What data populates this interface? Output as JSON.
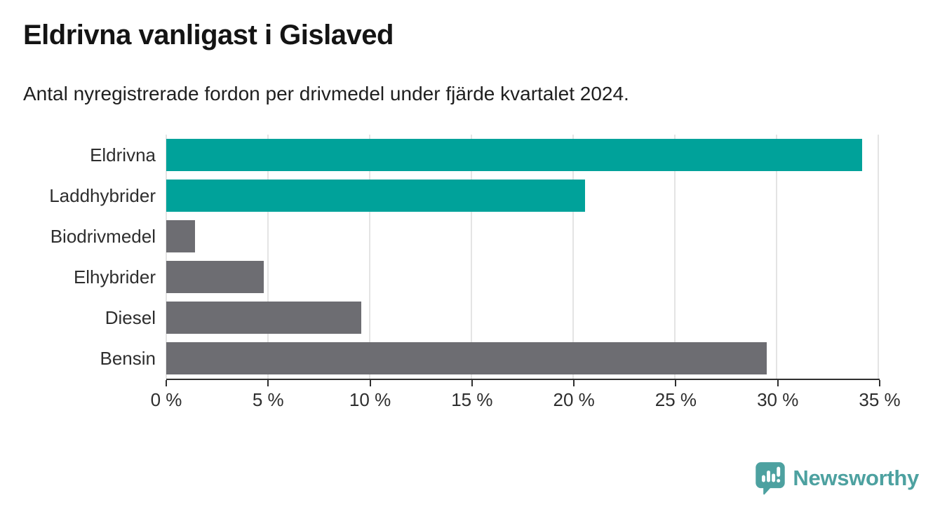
{
  "header": {
    "title": "Eldrivna vanligast i Gislaved",
    "subtitle": "Antal nyregistrerade fordon per drivmedel under fjärde kvartalet 2024."
  },
  "branding": {
    "name": "Newsworthy",
    "icon": "newsworthy-logo-icon",
    "color": "#4da1a0"
  },
  "colors": {
    "highlight_bar": "#00a29a",
    "default_bar": "#6d6d72",
    "gridline": "#e4e4e4",
    "axis": "#2f2f2f",
    "text": "#2e2e2e",
    "title": "#141414"
  },
  "chart_data": {
    "type": "bar",
    "orientation": "horizontal",
    "title": "Eldrivna vanligast i Gislaved",
    "subtitle": "Antal nyregistrerade fordon per drivmedel under fjärde kvartalet 2024.",
    "categories": [
      "Eldrivna",
      "Laddhybrider",
      "Biodrivmedel",
      "Elhybrider",
      "Diesel",
      "Bensin"
    ],
    "values": [
      34.2,
      20.6,
      1.4,
      4.8,
      9.6,
      29.5
    ],
    "unit": "%",
    "bar_colors": [
      "#00a29a",
      "#00a29a",
      "#6d6d72",
      "#6d6d72",
      "#6d6d72",
      "#6d6d72"
    ],
    "xlim": [
      0,
      35
    ],
    "x_tick_values": [
      0,
      5,
      10,
      15,
      20,
      25,
      30,
      35
    ],
    "x_tick_labels": [
      "0 %",
      "5 %",
      "10 %",
      "15 %",
      "20 %",
      "25 %",
      "30 %",
      "35 %"
    ],
    "xlabel": "",
    "ylabel": "",
    "grid": true,
    "legend": false
  }
}
